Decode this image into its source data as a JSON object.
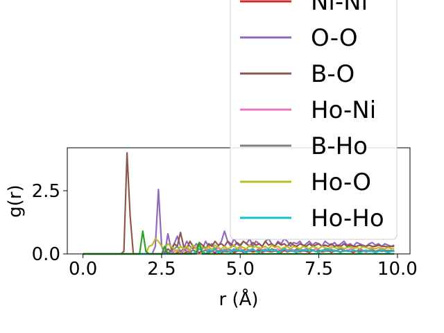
{
  "chart_data": {
    "type": "line",
    "xlabel": "r (Å)",
    "ylabel": "g(r)",
    "xlim": [
      -0.5,
      10.4
    ],
    "ylim": [
      0,
      4.2
    ],
    "xticks": [
      "0.0",
      "2.5",
      "5.0",
      "7.5",
      "10.0"
    ],
    "xtick_values": [
      0,
      2.5,
      5,
      7.5,
      10
    ],
    "yticks": [
      "0.0",
      "2.5"
    ],
    "ytick_values": [
      0,
      2.5
    ],
    "legend_position": "upper-right, extending above the axes",
    "grid": false,
    "x": [
      0.0,
      0.1,
      0.2,
      0.3,
      0.4,
      0.5,
      0.6,
      0.7,
      0.8,
      0.9,
      1.0,
      1.1,
      1.2,
      1.3,
      1.4,
      1.5,
      1.6,
      1.7,
      1.8,
      1.9,
      2.0,
      2.1,
      2.2,
      2.3,
      2.4,
      2.5,
      2.6,
      2.7,
      2.8,
      2.9,
      3.0,
      3.1,
      3.2,
      3.3,
      3.4,
      3.5,
      3.6,
      3.7,
      3.8,
      3.9,
      4.0,
      4.1,
      4.2,
      4.3,
      4.4,
      4.5,
      4.6,
      4.7,
      4.8,
      4.9,
      5.0,
      5.1,
      5.2,
      5.3,
      5.4,
      5.5,
      5.6,
      5.7,
      5.8,
      5.9,
      6.0,
      6.1,
      6.2,
      6.3,
      6.4,
      6.5,
      6.6,
      6.7,
      6.8,
      6.9,
      7.0,
      7.1,
      7.2,
      7.3,
      7.4,
      7.5,
      7.6,
      7.7,
      7.8,
      7.9,
      8.0,
      8.1,
      8.2,
      8.3,
      8.4,
      8.5,
      8.6,
      8.7,
      8.8,
      8.9,
      9.0,
      9.1,
      9.2,
      9.3,
      9.4,
      9.5,
      9.6,
      9.7,
      9.8,
      9.9
    ],
    "series": [
      {
        "name": "Ni-Ni",
        "color": "#d62728",
        "legend_partially_visible": true,
        "values": [
          0,
          0,
          0,
          0,
          0,
          0,
          0,
          0,
          0,
          0,
          0,
          0,
          0,
          0,
          0,
          0,
          0,
          0,
          0,
          0,
          0,
          0,
          0,
          0,
          0,
          0,
          0.05,
          0,
          0.1,
          0,
          0.05,
          0.1,
          0,
          0.08,
          0.05,
          0,
          0.1,
          0.05,
          0.12,
          0,
          0.08,
          0.1,
          0.05,
          0.12,
          0.06,
          0.1,
          0.08,
          0.12,
          0.05,
          0.1,
          0.14,
          0.06,
          0.1,
          0.12,
          0.08,
          0.1,
          0.14,
          0.06,
          0.12,
          0.1,
          0.08,
          0.12,
          0.1,
          0.06,
          0.14,
          0.08,
          0.12,
          0.1,
          0.14,
          0.08,
          0.12,
          0.1,
          0.06,
          0.14,
          0.1,
          0.12,
          0.08,
          0.1,
          0.14,
          0.06,
          0.12,
          0.1,
          0.08,
          0.12,
          0.14,
          0.1,
          0.06,
          0.12,
          0.1,
          0.14,
          0.08,
          0.12,
          0.1,
          0.06,
          0.14,
          0.1,
          0.12,
          0.08,
          0.1,
          0.12
        ]
      },
      {
        "name": "O-O",
        "color": "#9467bd",
        "values": [
          0,
          0,
          0,
          0,
          0,
          0,
          0,
          0,
          0,
          0,
          0,
          0,
          0,
          0,
          0,
          0,
          0,
          0,
          0,
          0,
          0,
          0,
          0,
          0.3,
          2.55,
          0.3,
          0,
          0.8,
          0.2,
          0.4,
          0.7,
          0.3,
          0.2,
          0.5,
          0.3,
          0.2,
          0.4,
          0.3,
          0.2,
          0.5,
          0.3,
          0.4,
          0.2,
          0.3,
          0.5,
          0.9,
          0.5,
          0.3,
          0.6,
          0.4,
          0.3,
          0.5,
          0.4,
          0.6,
          0.3,
          0.5,
          0.4,
          0.3,
          0.5,
          0.6,
          0.4,
          0.3,
          0.5,
          0.4,
          0.6,
          0.5,
          0.3,
          0.45,
          0.4,
          0.5,
          0.3,
          0.4,
          0.5,
          0.35,
          0.45,
          0.4,
          0.3,
          0.5,
          0.4,
          0.35,
          0.45,
          0.3,
          0.4,
          0.5,
          0.35,
          0.4,
          0.3,
          0.45,
          0.4,
          0.35,
          0.3,
          0.4,
          0.45,
          0.35,
          0.4,
          0.3,
          0.4,
          0.35,
          0.3,
          0.35
        ]
      },
      {
        "name": "B-O",
        "color": "#8c564b",
        "values": [
          0,
          0,
          0,
          0,
          0,
          0,
          0,
          0,
          0,
          0,
          0,
          0,
          0,
          0.1,
          4.0,
          1.5,
          0,
          0,
          0,
          0,
          0,
          0,
          0,
          0,
          0,
          0,
          0,
          0.2,
          0.1,
          0.4,
          0.3,
          0.85,
          0.3,
          0.2,
          0.5,
          0.3,
          0.2,
          0.45,
          0.35,
          0.2,
          0.4,
          0.3,
          0.5,
          0.35,
          0.4,
          0.3,
          0.5,
          0.4,
          0.3,
          0.45,
          0.35,
          0.5,
          0.4,
          0.3,
          0.45,
          0.35,
          0.4,
          0.3,
          0.5,
          0.35,
          0.4,
          0.3,
          0.45,
          0.35,
          0.4,
          0.3,
          0.45,
          0.35,
          0.3,
          0.4,
          0.35,
          0.3,
          0.4,
          0.3,
          0.35,
          0.4,
          0.3,
          0.35,
          0.3,
          0.4,
          0.3,
          0.35,
          0.3,
          0.4,
          0.3,
          0.35,
          0.3,
          0.3,
          0.35,
          0.3,
          0.3,
          0.35,
          0.3,
          0.3,
          0.35,
          0.3,
          0.3,
          0.28,
          0.3,
          0.3
        ]
      },
      {
        "name": "Ho-Ni",
        "color": "#e377c2",
        "values": [
          0,
          0,
          0,
          0,
          0,
          0,
          0,
          0,
          0,
          0,
          0,
          0,
          0,
          0,
          0,
          0,
          0,
          0,
          0,
          0,
          0,
          0,
          0,
          0,
          0,
          0,
          0,
          0,
          0.05,
          0.1,
          0.15,
          0.05,
          0.1,
          0.2,
          0.1,
          0.15,
          0.05,
          0.2,
          0.1,
          0.15,
          0.2,
          0.1,
          0.15,
          0.25,
          0.1,
          0.2,
          0.15,
          0.1,
          0.2,
          0.15,
          0.25,
          0.1,
          0.2,
          0.15,
          0.2,
          0.1,
          0.25,
          0.15,
          0.2,
          0.1,
          0.2,
          0.15,
          0.2,
          0.1,
          0.25,
          0.15,
          0.2,
          0.15,
          0.1,
          0.2,
          0.15,
          0.2,
          0.1,
          0.15,
          0.2,
          0.15,
          0.1,
          0.2,
          0.15,
          0.2,
          0.1,
          0.15,
          0.2,
          0.15,
          0.1,
          0.2,
          0.15,
          0.1,
          0.2,
          0.15,
          0.1,
          0.15,
          0.2,
          0.1,
          0.15,
          0.2,
          0.1,
          0.15,
          0.1,
          0.15
        ]
      },
      {
        "name": "B-Ho",
        "color": "#7f7f7f",
        "values": [
          0,
          0,
          0,
          0,
          0,
          0,
          0,
          0,
          0,
          0,
          0,
          0,
          0,
          0,
          0,
          0,
          0,
          0,
          0,
          0,
          0,
          0,
          0,
          0,
          0,
          0,
          0,
          0.05,
          0.1,
          0.2,
          0.3,
          0.1,
          0.2,
          0.1,
          0.05,
          0.15,
          0.1,
          0.2,
          0.1,
          0.15,
          0.05,
          0.1,
          0.2,
          0.1,
          0.15,
          0.1,
          0.2,
          0.15,
          0.1,
          0.2,
          0.1,
          0.15,
          0.2,
          0.1,
          0.15,
          0.1,
          0.2,
          0.1,
          0.15,
          0.1,
          0.2,
          0.15,
          0.1,
          0.15,
          0.2,
          0.1,
          0.15,
          0.1,
          0.2,
          0.1,
          0.15,
          0.1,
          0.2,
          0.15,
          0.1,
          0.15,
          0.1,
          0.2,
          0.1,
          0.15,
          0.1,
          0.15,
          0.2,
          0.1,
          0.15,
          0.1,
          0.15,
          0.1,
          0.2,
          0.1,
          0.15,
          0.1,
          0.15,
          0.1,
          0.15,
          0.1,
          0.15,
          0.1,
          0.15,
          0.1
        ]
      },
      {
        "name": "Ho-O",
        "color": "#bcbd22",
        "values": [
          0,
          0,
          0,
          0,
          0,
          0,
          0,
          0,
          0,
          0,
          0,
          0,
          0,
          0,
          0,
          0,
          0,
          0,
          0,
          0,
          0,
          0.3,
          0.35,
          0.6,
          0.5,
          0.3,
          0.2,
          0.4,
          0.3,
          0.2,
          0.1,
          0.3,
          0.2,
          0.3,
          0.15,
          0.35,
          0.2,
          0.3,
          0.25,
          0.2,
          0.3,
          0.15,
          0.35,
          0.25,
          0.2,
          0.3,
          0.2,
          0.25,
          0.35,
          0.2,
          0.3,
          0.25,
          0.2,
          0.35,
          0.25,
          0.3,
          0.2,
          0.25,
          0.3,
          0.2,
          0.35,
          0.25,
          0.3,
          0.2,
          0.25,
          0.3,
          0.2,
          0.3,
          0.25,
          0.2,
          0.3,
          0.25,
          0.2,
          0.3,
          0.25,
          0.2,
          0.3,
          0.25,
          0.2,
          0.28,
          0.25,
          0.22,
          0.28,
          0.2,
          0.25,
          0.28,
          0.22,
          0.25,
          0.2,
          0.28,
          0.25,
          0.22,
          0.25,
          0.2,
          0.25,
          0.22,
          0.2,
          0.25,
          0.22,
          0.2
        ]
      },
      {
        "name": "Ho-Ho",
        "color": "#17becf",
        "values": [
          0,
          0,
          0,
          0,
          0,
          0,
          0,
          0,
          0,
          0,
          0,
          0,
          0,
          0,
          0,
          0,
          0,
          0,
          0,
          0,
          0,
          0,
          0,
          0,
          0,
          0,
          0,
          0,
          0,
          0,
          0,
          0,
          0,
          0,
          0,
          0,
          0.1,
          0.2,
          0.1,
          0,
          0.15,
          0.1,
          0.2,
          0.05,
          0.1,
          0.15,
          0.1,
          0.05,
          0.2,
          0.1,
          0.15,
          0.1,
          0.05,
          0.15,
          0.2,
          0.1,
          0.05,
          0.15,
          0.1,
          0.2,
          0.1,
          0.15,
          0.05,
          0.1,
          0.2,
          0.1,
          0.15,
          0.1,
          0.05,
          0.15,
          0.1,
          0.2,
          0.1,
          0.15,
          0.1,
          0.05,
          0.15,
          0.1,
          0.2,
          0.1,
          0.15,
          0.1,
          0.05,
          0.15,
          0.1,
          0.1,
          0.15,
          0.1,
          0.05,
          0.1,
          0.15,
          0.1,
          0.1,
          0.05,
          0.1,
          0.15,
          0.1,
          0.05,
          0.1,
          0.1
        ]
      },
      {
        "name": "",
        "color": "#2ca02c",
        "legend_hidden": true,
        "values": [
          0,
          0,
          0,
          0,
          0,
          0,
          0,
          0,
          0,
          0,
          0,
          0,
          0,
          0,
          0,
          0,
          0,
          0,
          0,
          0.9,
          0.1,
          0,
          0,
          0,
          0,
          0,
          0.3,
          0,
          0,
          0,
          0,
          0,
          0,
          0,
          0,
          0,
          0,
          0.45,
          0,
          0,
          0,
          0,
          0,
          0,
          0,
          0,
          0,
          0,
          0,
          0,
          0,
          0,
          0,
          0,
          0,
          0,
          0,
          0,
          0,
          0,
          0,
          0,
          0,
          0,
          0,
          0,
          0,
          0,
          0,
          0,
          0,
          0,
          0,
          0,
          0,
          0,
          0,
          0,
          0,
          0,
          0,
          0,
          0,
          0,
          0,
          0,
          0,
          0,
          0,
          0,
          0,
          0,
          0,
          0,
          0,
          0,
          0,
          0,
          0,
          0
        ]
      }
    ]
  }
}
